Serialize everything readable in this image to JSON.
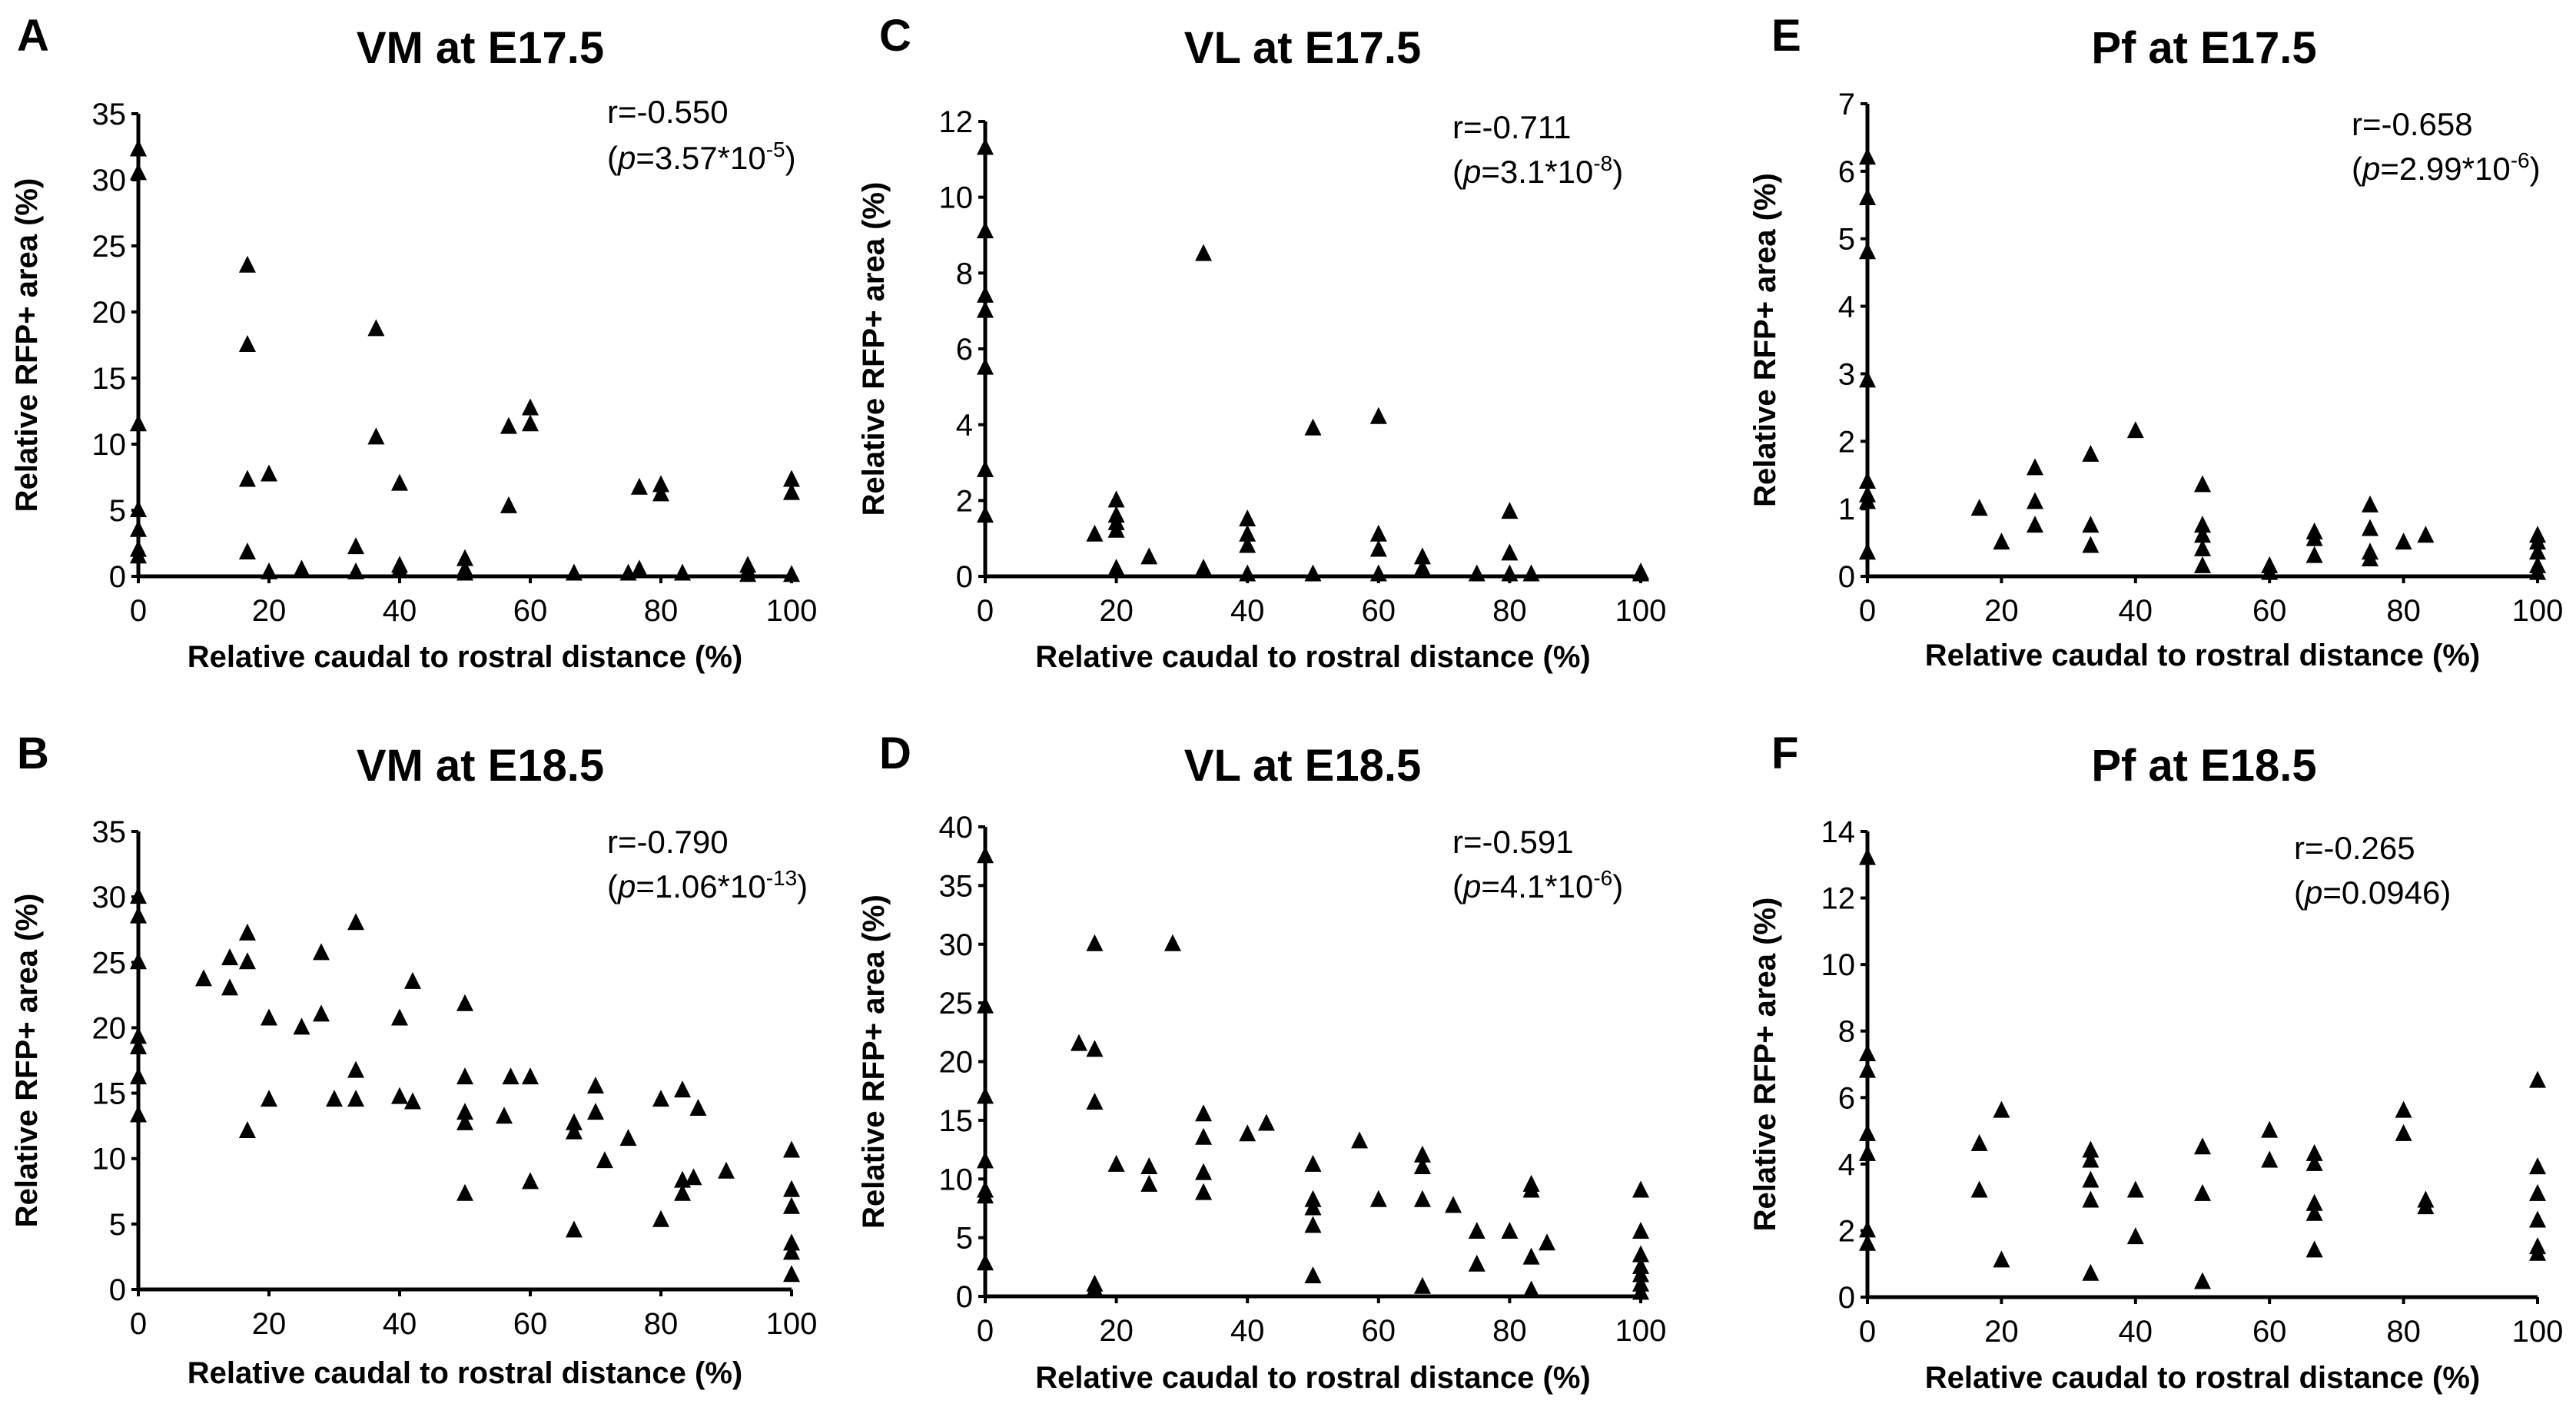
{
  "chart_data": [
    {
      "panel": "A",
      "type": "scatter",
      "title": "VM at E17.5",
      "xlabel": "Relative caudal to rostral distance (%)",
      "ylabel": "Relative RFP+ area (%)",
      "xlim": [
        0,
        100
      ],
      "ylim": [
        0,
        35
      ],
      "xticks": [
        0,
        20,
        40,
        60,
        80,
        100
      ],
      "yticks": [
        0,
        5,
        10,
        15,
        20,
        25,
        30,
        35
      ],
      "stat_r": "r=-0.550",
      "stat_p_prefix": "(",
      "stat_p_italic": "p",
      "stat_p_value": "=3.57*10",
      "stat_p_exp": "-5",
      "stat_p_suffix": ")",
      "x": [
        0,
        0,
        0,
        0,
        0,
        0,
        0,
        16.7,
        16.7,
        16.7,
        16.7,
        20,
        20,
        25,
        33.3,
        33.3,
        36.4,
        36.4,
        40,
        40,
        40,
        50,
        50,
        50,
        56.7,
        56.7,
        60,
        60,
        66.7,
        75,
        76.7,
        76.7,
        80,
        80,
        83.3,
        93.3,
        93.3,
        93.3,
        100,
        100,
        100
      ],
      "y": [
        32.3,
        30.5,
        11.5,
        5,
        3.5,
        2,
        1.5,
        23.5,
        17.5,
        7.3,
        1.8,
        7.7,
        0.3,
        0.5,
        2.2,
        0.3,
        18.7,
        10.5,
        7,
        0.8,
        0.5,
        1.3,
        0.5,
        0.2,
        11.3,
        5.3,
        12.7,
        11.5,
        0.2,
        0.2,
        6.7,
        0.5,
        6.9,
        6.2,
        0.2,
        0.8,
        0.4,
        0.1,
        7.3,
        6.3,
        0.1
      ]
    },
    {
      "panel": "B",
      "type": "scatter",
      "title": "VM at E18.5",
      "xlabel": "Relative caudal to rostral distance (%)",
      "ylabel": "Relative RFP+ area (%)",
      "xlim": [
        0,
        100
      ],
      "ylim": [
        0,
        35
      ],
      "xticks": [
        0,
        20,
        40,
        60,
        80,
        100
      ],
      "yticks": [
        0,
        5,
        10,
        15,
        20,
        25,
        30,
        35
      ],
      "stat_r": "r=-0.790",
      "stat_p_prefix": "(",
      "stat_p_italic": "p",
      "stat_p_value": "=1.06*10",
      "stat_p_exp": "-13",
      "stat_p_suffix": ")",
      "x": [
        0,
        0,
        0,
        0,
        0,
        0,
        0,
        10,
        14,
        14,
        16.7,
        16.7,
        16.7,
        20,
        20,
        25,
        28,
        28,
        30,
        33.3,
        33.3,
        33.3,
        40,
        40,
        42,
        42,
        50,
        50,
        50,
        50,
        50,
        56,
        57,
        60,
        60,
        66.7,
        66.7,
        66.7,
        70,
        70,
        71.4,
        75,
        80,
        80,
        83.3,
        83.3,
        83.3,
        85,
        85.7,
        90,
        100,
        100,
        100,
        100,
        100,
        100
      ],
      "y": [
        30,
        28.5,
        25,
        19.3,
        18.5,
        16.2,
        13.3,
        23.7,
        25.3,
        23,
        27.2,
        25,
        12.1,
        20.7,
        14.5,
        20,
        25.7,
        21,
        14.5,
        28,
        16.7,
        14.5,
        20.7,
        14.7,
        23.5,
        14.3,
        21.8,
        16.2,
        13.5,
        12.7,
        7.3,
        13.2,
        16.2,
        16.2,
        8.2,
        12.7,
        12,
        4.5,
        15.5,
        13.5,
        9.8,
        11.5,
        14.5,
        5.3,
        15.2,
        8.3,
        7.3,
        8.5,
        13.8,
        9,
        10.6,
        7.6,
        6.3,
        3.5,
        2.8,
        1.1
      ]
    },
    {
      "panel": "C",
      "type": "scatter",
      "title": "VL at E17.5",
      "xlabel": "Relative caudal to rostral distance (%)",
      "ylabel": "Relative RFP+ area (%)",
      "xlim": [
        0,
        100
      ],
      "ylim": [
        0,
        12
      ],
      "xticks": [
        0,
        20,
        40,
        60,
        80,
        100
      ],
      "yticks": [
        0,
        2,
        4,
        6,
        8,
        10,
        12
      ],
      "stat_r": "r=-0.711",
      "stat_p_prefix": "(",
      "stat_p_italic": "p",
      "stat_p_value": "=3.1*10",
      "stat_p_exp": "-8",
      "stat_p_suffix": ")",
      "x": [
        0,
        0,
        0,
        0,
        0,
        0,
        0,
        16.7,
        20,
        20,
        20,
        20,
        20,
        25,
        33.3,
        33.3,
        40,
        40,
        40,
        40,
        50,
        50,
        60,
        60,
        60,
        60,
        66.7,
        66.7,
        75,
        80,
        80,
        80,
        83.3,
        100,
        100
      ],
      "y": [
        11.3,
        9.1,
        7.4,
        7,
        5.5,
        2.8,
        1.6,
        1.1,
        2,
        1.6,
        1.4,
        1.2,
        0.2,
        0.5,
        8.5,
        0.2,
        1.5,
        1.1,
        0.8,
        0.05,
        3.9,
        0.05,
        4.2,
        1.1,
        0.7,
        0.05,
        0.5,
        0.2,
        0.05,
        1.7,
        0.6,
        0.05,
        0.05,
        0.1,
        0.05
      ]
    },
    {
      "panel": "D",
      "type": "scatter",
      "title": "VL at E18.5",
      "xlabel": "Relative caudal to rostral distance (%)",
      "ylabel": "Relative RFP+ area (%)",
      "xlim": [
        0,
        100
      ],
      "ylim": [
        0,
        40
      ],
      "xticks": [
        0,
        20,
        40,
        60,
        80,
        100
      ],
      "yticks": [
        0,
        5,
        10,
        15,
        20,
        25,
        30,
        35,
        40
      ],
      "stat_r": "r=-0.591",
      "stat_p_prefix": "(",
      "stat_p_italic": "p",
      "stat_p_value": "=4.1*10",
      "stat_p_exp": "-6",
      "stat_p_suffix": ")",
      "x": [
        0,
        0,
        0,
        0,
        0,
        0,
        0,
        14.3,
        16.7,
        16.7,
        16.7,
        16.7,
        16.7,
        20,
        25,
        25,
        28.6,
        33.3,
        33.3,
        33.3,
        33.3,
        40,
        42.9,
        50,
        50,
        50,
        50,
        50,
        57.1,
        60,
        66.7,
        66.7,
        66.7,
        66.7,
        71.4,
        75,
        75,
        80,
        83.3,
        83.3,
        83.3,
        83.3,
        85.7,
        100,
        100,
        100,
        100,
        100,
        100,
        100
      ],
      "y": [
        37.5,
        24.7,
        17,
        11.5,
        9,
        8.5,
        2.8,
        21.5,
        30,
        21,
        16.5,
        1,
        0.6,
        11.2,
        11,
        9.5,
        30,
        15.5,
        13.5,
        10.5,
        8.8,
        13.8,
        14.7,
        11.2,
        8.2,
        7.5,
        6,
        1.7,
        13.2,
        8.2,
        12,
        11,
        8.2,
        0.8,
        7.7,
        5.5,
        2.7,
        5.5,
        9.5,
        9,
        3.3,
        0.5,
        4.5,
        9,
        5.5,
        3.5,
        2.5,
        1.8,
        1,
        0.3
      ]
    },
    {
      "panel": "E",
      "type": "scatter",
      "title": "Pf at E17.5",
      "xlabel": "Relative caudal to rostral distance (%)",
      "ylabel": "Relative RFP+ area (%)",
      "xlim": [
        0,
        100
      ],
      "ylim": [
        0,
        7
      ],
      "xticks": [
        0,
        20,
        40,
        60,
        80,
        100
      ],
      "yticks": [
        0,
        1,
        2,
        3,
        4,
        5,
        6,
        7
      ],
      "stat_r": "r=-0.658",
      "stat_p_prefix": "(",
      "stat_p_italic": "p",
      "stat_p_value": "=2.99*10",
      "stat_p_exp": "-6",
      "stat_p_suffix": ")",
      "x": [
        0,
        0,
        0,
        0,
        0,
        0,
        0,
        0,
        16.7,
        20,
        25,
        25,
        25,
        33.3,
        33.3,
        33.3,
        40,
        50,
        50,
        50,
        50,
        50,
        60,
        60,
        66.7,
        66.7,
        66.7,
        75,
        75,
        75,
        75,
        80,
        83.3,
        100,
        100,
        100,
        100,
        100
      ],
      "y": [
        6.2,
        5.6,
        4.8,
        2.9,
        1.4,
        1.2,
        1.1,
        0.35,
        1,
        0.5,
        1.6,
        1.1,
        0.75,
        1.8,
        0.75,
        0.45,
        2.15,
        1.35,
        0.75,
        0.6,
        0.4,
        0.15,
        0.15,
        0.05,
        0.65,
        0.55,
        0.3,
        1.05,
        0.7,
        0.35,
        0.25,
        0.5,
        0.6,
        0.6,
        0.5,
        0.35,
        0.15,
        0.05
      ]
    },
    {
      "panel": "F",
      "type": "scatter",
      "title": "Pf at E18.5",
      "xlabel": "Relative caudal to rostral distance (%)",
      "ylabel": "Relative RFP+ area (%)",
      "xlim": [
        0,
        100
      ],
      "ylim": [
        0,
        14
      ],
      "xticks": [
        0,
        20,
        40,
        60,
        80,
        100
      ],
      "yticks": [
        0,
        2,
        4,
        6,
        8,
        10,
        12,
        14
      ],
      "stat_r": "r=-0.265",
      "stat_p_prefix": "(",
      "stat_p_italic": "p",
      "stat_p_value": "=0.0946",
      "stat_p_exp": "",
      "stat_p_suffix": ")",
      "x": [
        0,
        0,
        0,
        0,
        0,
        0,
        0,
        16.7,
        16.7,
        20,
        20,
        33.3,
        33.3,
        33.3,
        33.3,
        33.3,
        40,
        40,
        50,
        50,
        50,
        60,
        60,
        66.7,
        66.7,
        66.7,
        66.7,
        66.7,
        80,
        80,
        83.3,
        83.3,
        100,
        100,
        100,
        100,
        100,
        100
      ],
      "y": [
        13.2,
        7.3,
        6.8,
        4.9,
        4.3,
        2,
        1.6,
        4.6,
        3.2,
        5.6,
        1.1,
        4.4,
        4.1,
        3.5,
        2.9,
        0.7,
        3.2,
        1.8,
        4.5,
        3.1,
        0.45,
        5,
        4.1,
        4.3,
        4,
        2.8,
        2.5,
        1.4,
        5.6,
        4.9,
        2.9,
        2.7,
        6.5,
        3.9,
        3.1,
        2.3,
        1.5,
        1.3
      ]
    }
  ]
}
